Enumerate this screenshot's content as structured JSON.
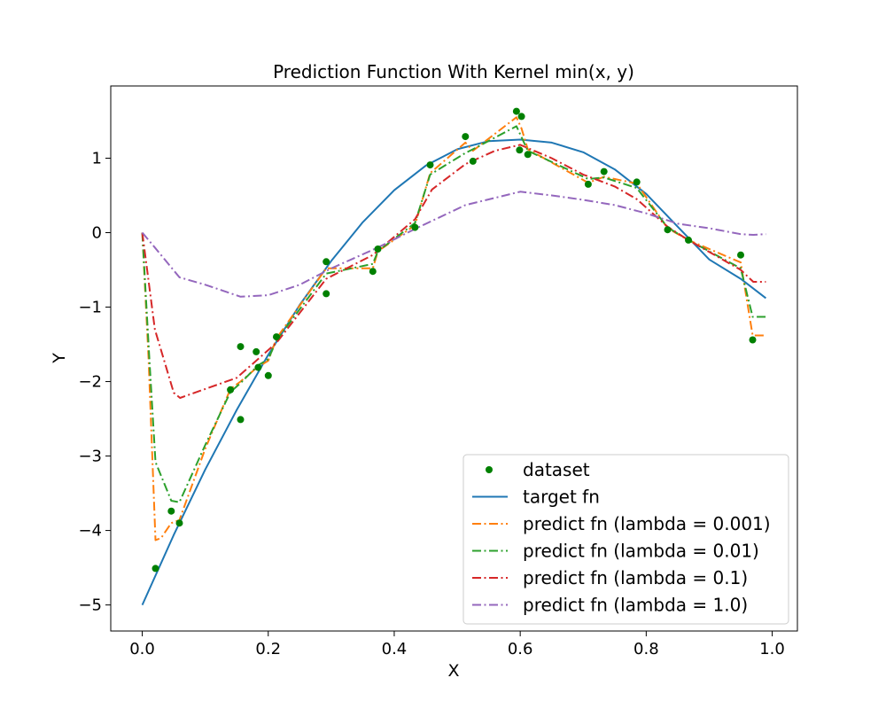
{
  "chart_data": {
    "type": "line",
    "title": "Prediction Function With Kernel min(x, y)",
    "xlabel": "X",
    "ylabel": "Y",
    "xlim": [
      -0.05,
      1.04
    ],
    "ylim": [
      -5.35,
      1.97
    ],
    "xticks": [
      0.0,
      0.2,
      0.4,
      0.6,
      0.8,
      1.0
    ],
    "xtick_labels": [
      "0.0",
      "0.2",
      "0.4",
      "0.6",
      "0.8",
      "1.0"
    ],
    "yticks": [
      -5,
      -4,
      -3,
      -2,
      -1,
      0,
      1
    ],
    "ytick_labels": [
      "−5",
      "−4",
      "−3",
      "−2",
      "−1",
      "0",
      "1"
    ],
    "grid": false,
    "legend_position": "bottom-right",
    "scatter": {
      "name": "dataset",
      "color": "#008000",
      "points": [
        [
          0.021,
          -4.51
        ],
        [
          0.046,
          -3.74
        ],
        [
          0.059,
          -3.9
        ],
        [
          0.14,
          -2.11
        ],
        [
          0.156,
          -1.53
        ],
        [
          0.156,
          -2.51
        ],
        [
          0.181,
          -1.6
        ],
        [
          0.184,
          -1.81
        ],
        [
          0.2,
          -1.92
        ],
        [
          0.213,
          -1.4
        ],
        [
          0.292,
          -0.39
        ],
        [
          0.292,
          -0.82
        ],
        [
          0.366,
          -0.52
        ],
        [
          0.374,
          -0.22
        ],
        [
          0.433,
          0.07
        ],
        [
          0.457,
          0.91
        ],
        [
          0.513,
          1.29
        ],
        [
          0.525,
          0.96
        ],
        [
          0.594,
          1.63
        ],
        [
          0.599,
          1.11
        ],
        [
          0.602,
          1.56
        ],
        [
          0.612,
          1.05
        ],
        [
          0.708,
          0.65
        ],
        [
          0.733,
          0.82
        ],
        [
          0.785,
          0.68
        ],
        [
          0.834,
          0.04
        ],
        [
          0.867,
          -0.1
        ],
        [
          0.95,
          -0.3
        ],
        [
          0.969,
          -1.44
        ]
      ]
    },
    "series": [
      {
        "name": "target fn",
        "color": "#1f77b4",
        "style": "solid",
        "points": [
          [
            0.0,
            -5.0
          ],
          [
            0.05,
            -4.06
          ],
          [
            0.1,
            -3.18
          ],
          [
            0.15,
            -2.38
          ],
          [
            0.2,
            -1.64
          ],
          [
            0.25,
            -0.97
          ],
          [
            0.3,
            -0.38
          ],
          [
            0.35,
            0.14
          ],
          [
            0.4,
            0.57
          ],
          [
            0.45,
            0.9
          ],
          [
            0.5,
            1.12
          ],
          [
            0.55,
            1.23
          ],
          [
            0.6,
            1.25
          ],
          [
            0.65,
            1.21
          ],
          [
            0.7,
            1.08
          ],
          [
            0.75,
            0.85
          ],
          [
            0.8,
            0.52
          ],
          [
            0.85,
            0.08
          ],
          [
            0.9,
            -0.36
          ],
          [
            0.95,
            -0.62
          ],
          [
            0.99,
            -0.88
          ]
        ]
      },
      {
        "name": "predict fn (lambda = 0.001)",
        "color": "#ff7f0e",
        "style": "dashdot",
        "points": [
          [
            0.0,
            0.0
          ],
          [
            0.01,
            -1.7
          ],
          [
            0.021,
            -4.13
          ],
          [
            0.03,
            -4.1
          ],
          [
            0.046,
            -3.9
          ],
          [
            0.059,
            -3.86
          ],
          [
            0.1,
            -2.9
          ],
          [
            0.14,
            -2.1
          ],
          [
            0.156,
            -2.0
          ],
          [
            0.181,
            -1.82
          ],
          [
            0.2,
            -1.72
          ],
          [
            0.213,
            -1.42
          ],
          [
            0.292,
            -0.48
          ],
          [
            0.366,
            -0.48
          ],
          [
            0.374,
            -0.25
          ],
          [
            0.433,
            0.1
          ],
          [
            0.457,
            0.8
          ],
          [
            0.513,
            1.21
          ],
          [
            0.525,
            1.1
          ],
          [
            0.594,
            1.55
          ],
          [
            0.602,
            1.4
          ],
          [
            0.612,
            1.12
          ],
          [
            0.708,
            0.67
          ],
          [
            0.733,
            0.75
          ],
          [
            0.785,
            0.66
          ],
          [
            0.834,
            0.06
          ],
          [
            0.867,
            -0.1
          ],
          [
            0.95,
            -0.4
          ],
          [
            0.969,
            -1.38
          ],
          [
            0.99,
            -1.38
          ]
        ]
      },
      {
        "name": "predict fn (lambda = 0.01)",
        "color": "#2ca02c",
        "style": "dashdot",
        "points": [
          [
            0.0,
            0.0
          ],
          [
            0.012,
            -1.8
          ],
          [
            0.021,
            -3.08
          ],
          [
            0.046,
            -3.6
          ],
          [
            0.059,
            -3.62
          ],
          [
            0.1,
            -2.85
          ],
          [
            0.14,
            -2.14
          ],
          [
            0.156,
            -2.02
          ],
          [
            0.184,
            -1.78
          ],
          [
            0.2,
            -1.7
          ],
          [
            0.213,
            -1.45
          ],
          [
            0.292,
            -0.55
          ],
          [
            0.366,
            -0.42
          ],
          [
            0.374,
            -0.25
          ],
          [
            0.433,
            0.13
          ],
          [
            0.457,
            0.78
          ],
          [
            0.513,
            1.07
          ],
          [
            0.525,
            1.12
          ],
          [
            0.594,
            1.43
          ],
          [
            0.612,
            1.1
          ],
          [
            0.708,
            0.72
          ],
          [
            0.733,
            0.74
          ],
          [
            0.785,
            0.6
          ],
          [
            0.834,
            0.07
          ],
          [
            0.867,
            -0.1
          ],
          [
            0.95,
            -0.48
          ],
          [
            0.969,
            -1.13
          ],
          [
            0.99,
            -1.13
          ]
        ]
      },
      {
        "name": "predict fn (lambda = 0.1)",
        "color": "#d62728",
        "style": "dashdot",
        "points": [
          [
            0.0,
            0.0
          ],
          [
            0.02,
            -1.3
          ],
          [
            0.05,
            -2.15
          ],
          [
            0.06,
            -2.22
          ],
          [
            0.1,
            -2.1
          ],
          [
            0.15,
            -1.95
          ],
          [
            0.213,
            -1.48
          ],
          [
            0.292,
            -0.62
          ],
          [
            0.366,
            -0.3
          ],
          [
            0.433,
            0.18
          ],
          [
            0.46,
            0.58
          ],
          [
            0.513,
            0.92
          ],
          [
            0.56,
            1.1
          ],
          [
            0.6,
            1.18
          ],
          [
            0.65,
            1.0
          ],
          [
            0.7,
            0.78
          ],
          [
            0.75,
            0.62
          ],
          [
            0.785,
            0.45
          ],
          [
            0.834,
            0.08
          ],
          [
            0.867,
            -0.1
          ],
          [
            0.95,
            -0.5
          ],
          [
            0.97,
            -0.66
          ],
          [
            0.99,
            -0.66
          ]
        ]
      },
      {
        "name": "predict fn (lambda = 1.0)",
        "color": "#9467bd",
        "style": "dashdot",
        "points": [
          [
            0.0,
            0.0
          ],
          [
            0.02,
            -0.2
          ],
          [
            0.059,
            -0.6
          ],
          [
            0.1,
            -0.7
          ],
          [
            0.156,
            -0.86
          ],
          [
            0.2,
            -0.84
          ],
          [
            0.25,
            -0.7
          ],
          [
            0.3,
            -0.48
          ],
          [
            0.374,
            -0.2
          ],
          [
            0.433,
            0.05
          ],
          [
            0.513,
            0.37
          ],
          [
            0.6,
            0.55
          ],
          [
            0.65,
            0.5
          ],
          [
            0.7,
            0.44
          ],
          [
            0.75,
            0.37
          ],
          [
            0.8,
            0.26
          ],
          [
            0.85,
            0.12
          ],
          [
            0.9,
            0.06
          ],
          [
            0.95,
            -0.02
          ],
          [
            0.97,
            -0.03
          ],
          [
            0.99,
            -0.02
          ]
        ]
      }
    ]
  }
}
